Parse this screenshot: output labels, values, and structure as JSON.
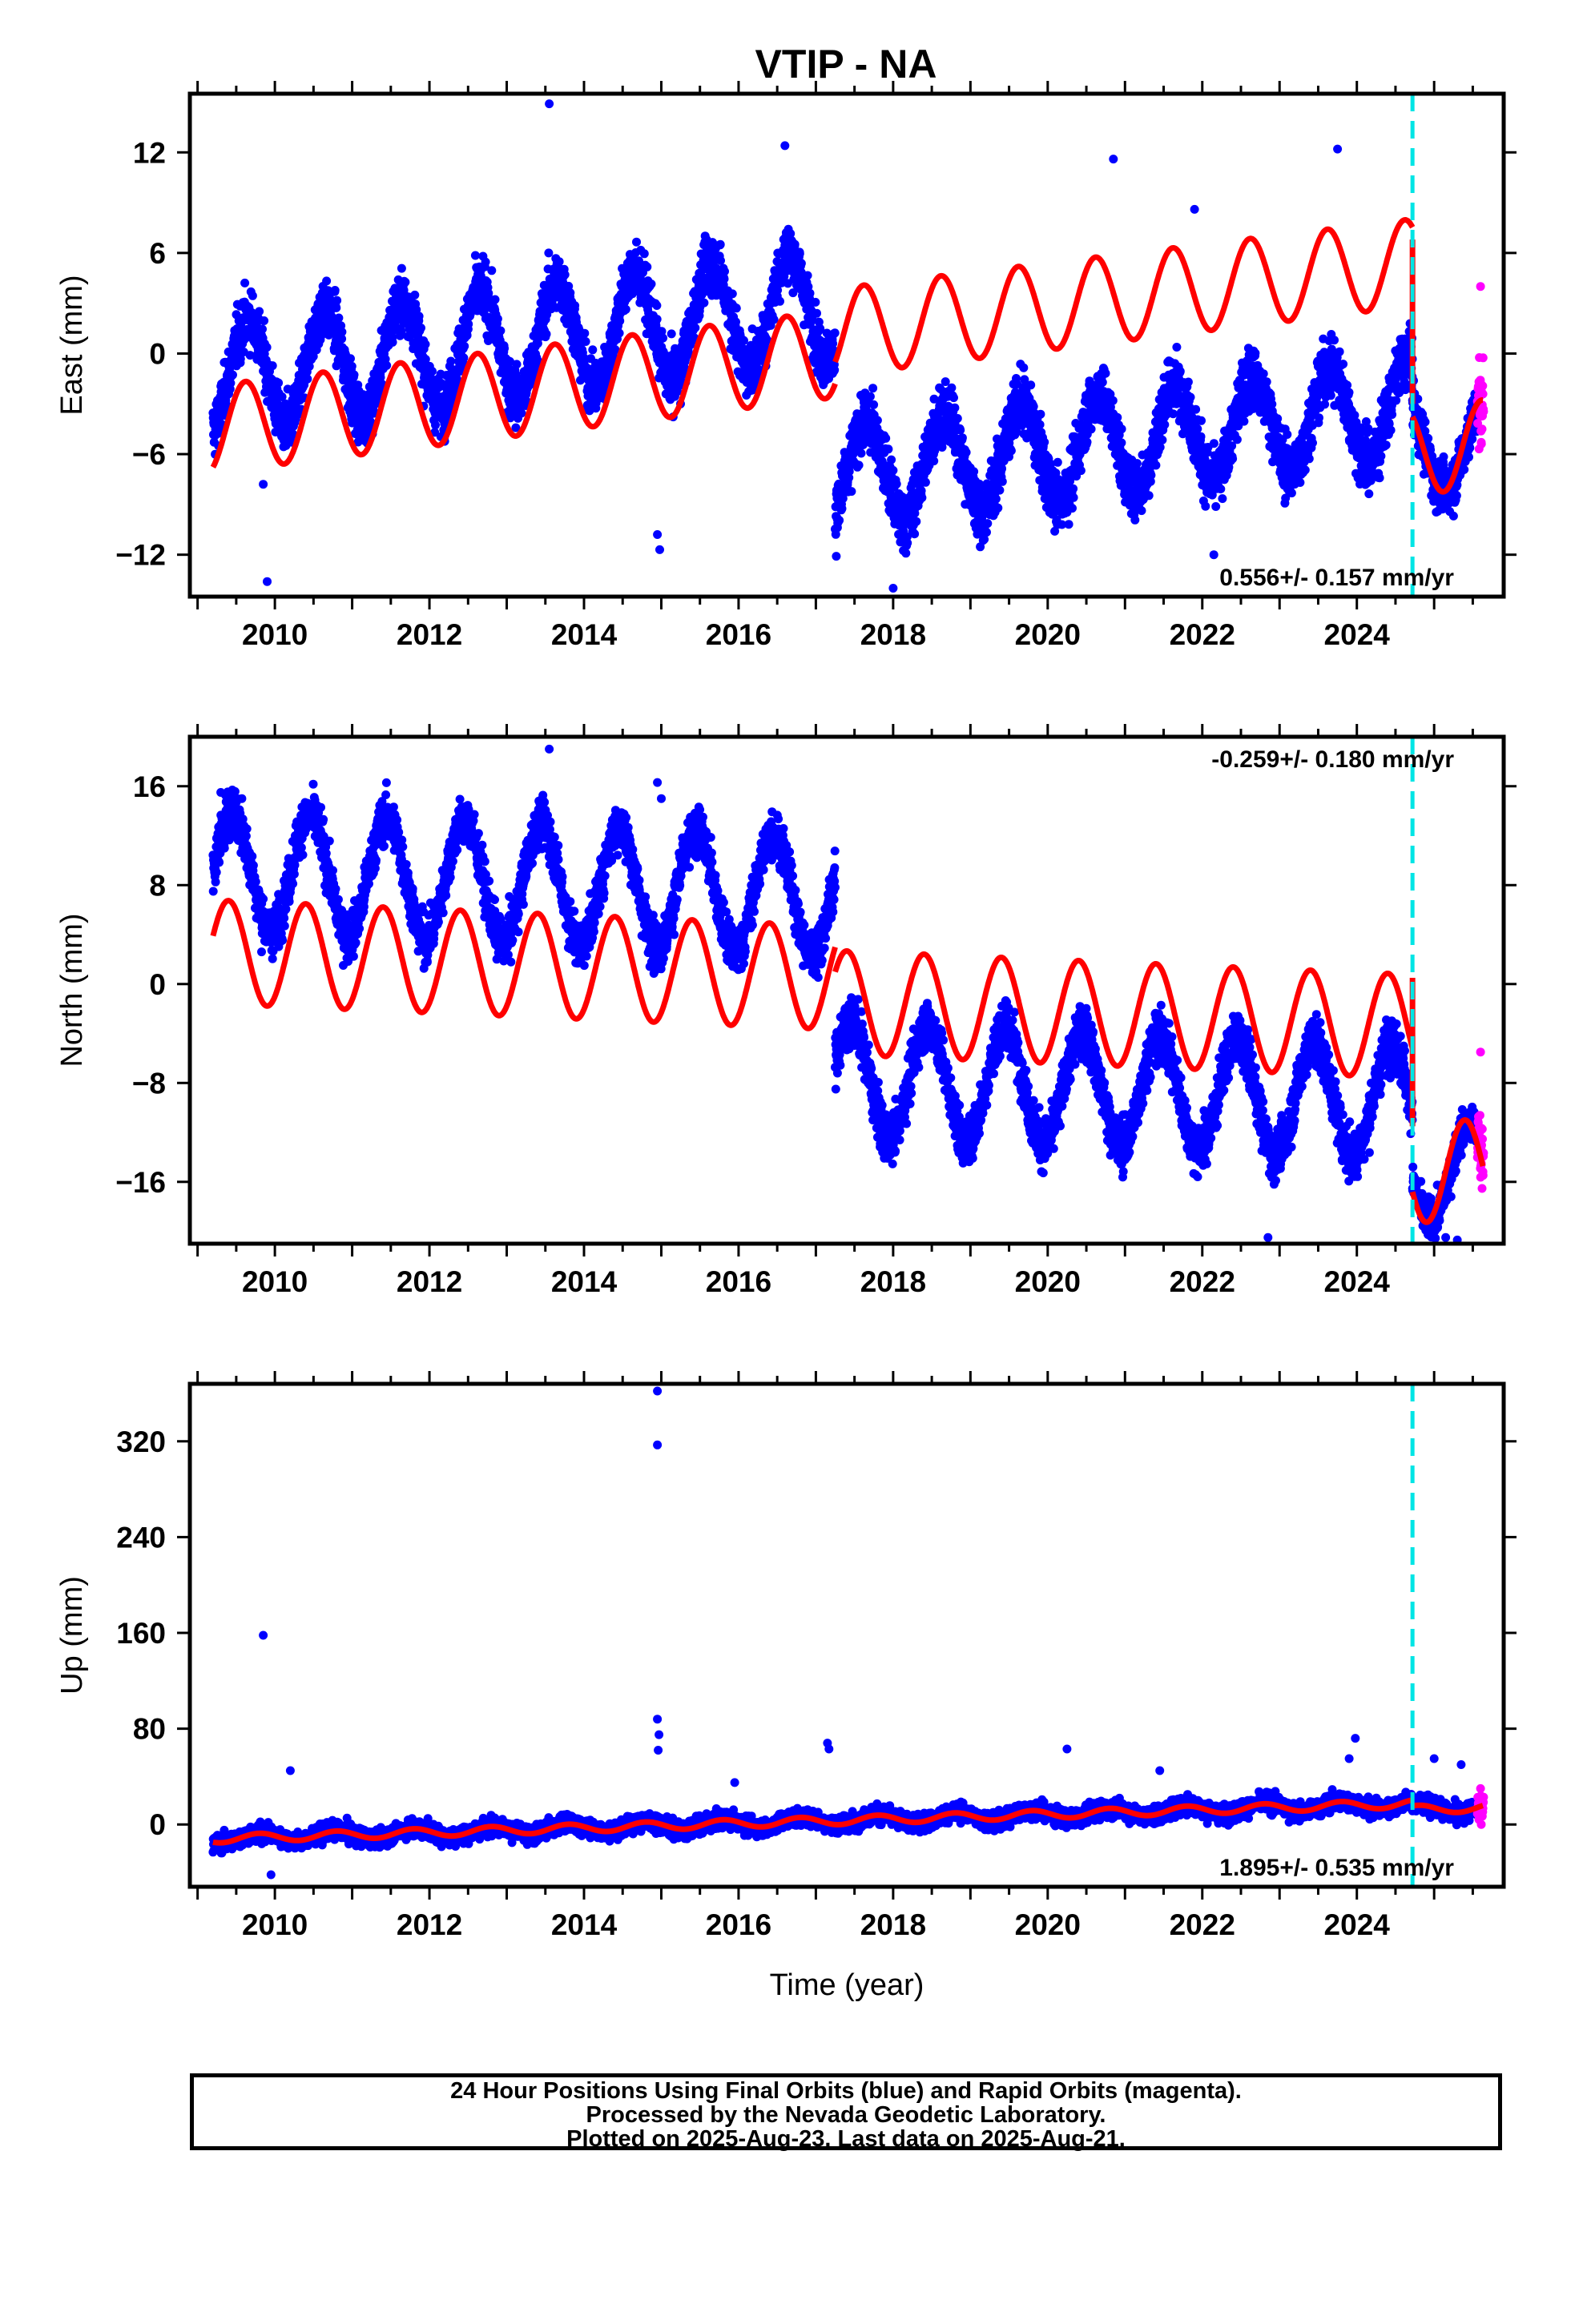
{
  "title": "VTIP - NA",
  "colors": {
    "final_orbits": "#0000ff",
    "rapid_orbits": "#ff00ff",
    "model": "#ff0000",
    "event": "#00e5e5"
  },
  "caption": {
    "line1": "24 Hour Positions Using Final Orbits (blue) and Rapid Orbits (magenta).",
    "line2": "Processed by the Nevada Geodetic Laboratory.",
    "line3": "Plotted on 2025-Aug-23. Last data on 2025-Aug-21."
  },
  "chart_data": [
    {
      "type": "scatter",
      "ylabel": "East (mm)",
      "xlim": [
        2008.9,
        2025.9
      ],
      "ylim": [
        -14.5,
        15.5
      ],
      "yticks": [
        -12,
        -6,
        0,
        6,
        12
      ],
      "xticks": [
        2010,
        2012,
        2014,
        2016,
        2018,
        2020,
        2022,
        2024
      ],
      "rate_label": "0.556+/- 0.157 mm/yr",
      "rate_position": "bottom-right",
      "event_line_x": 2024.72,
      "model": {
        "name": "model",
        "segments": [
          {
            "start": 2009.2,
            "end": 2017.25,
            "base": -4.5,
            "slope": 0.556,
            "amp": 2.6,
            "phase": 0.37
          },
          {
            "start": 2017.25,
            "end": 2024.72,
            "base": -3.2,
            "slope": 0.556,
            "amp": 2.6,
            "phase": 0.37
          },
          {
            "start": 2024.72,
            "end": 2025.63,
            "base": -14.5,
            "slope": 0.556,
            "amp": 2.6,
            "phase": 0.37
          }
        ],
        "jumps": [
          {
            "x": 2024.72,
            "from": 6.8,
            "to": -3.0
          }
        ]
      },
      "series": [
        {
          "name": "final",
          "segments": [
            {
              "start": 2009.2,
              "end": 2017.25,
              "base": -1.5,
              "slope": 0.556,
              "amp": 3.3,
              "phase": 0.4,
              "noise": 1.4
            },
            {
              "start": 2017.25,
              "end": 2024.72,
              "base": -11.8,
              "slope": 0.556,
              "amp": 3.0,
              "phase": 0.4,
              "noise": 1.5
            },
            {
              "start": 2024.72,
              "end": 2025.55,
              "base": -14.5,
              "slope": 0.556,
              "amp": 2.5,
              "phase": 0.4,
              "noise": 1.3
            }
          ],
          "outliers": [
            [
              2013.55,
              14.9
            ],
            [
              2009.85,
              -7.8
            ],
            [
              2009.9,
              -13.6
            ],
            [
              2014.95,
              -10.8
            ],
            [
              2014.98,
              -11.7
            ],
            [
              2020.85,
              11.6
            ],
            [
              2023.75,
              12.2
            ],
            [
              2016.6,
              12.4
            ],
            [
              2021.9,
              8.6
            ],
            [
              2018.0,
              -14.0
            ],
            [
              2022.15,
              -12.0
            ]
          ]
        },
        {
          "name": "rapid",
          "segments": [
            {
              "start": 2025.56,
              "end": 2025.64,
              "base": -14.5,
              "slope": 0.556,
              "amp": 2.5,
              "phase": 0.4,
              "noise": 2.2
            }
          ],
          "outliers": [
            [
              2025.6,
              4.0
            ],
            [
              2025.61,
              -5.3
            ]
          ]
        }
      ]
    },
    {
      "type": "scatter",
      "ylabel": "North (mm)",
      "xlim": [
        2008.9,
        2025.9
      ],
      "ylim": [
        -21,
        20
      ],
      "yticks": [
        -16,
        -8,
        0,
        8,
        16
      ],
      "xticks": [
        2010,
        2012,
        2014,
        2016,
        2018,
        2020,
        2022,
        2024
      ],
      "rate_label": "-0.259+/- 0.180 mm/yr",
      "rate_position": "top-right",
      "event_line_x": 2024.72,
      "model": {
        "name": "model",
        "segments": [
          {
            "start": 2009.2,
            "end": 2017.25,
            "base": 2.6,
            "slope": -0.259,
            "amp": 4.2,
            "phase": 0.15
          },
          {
            "start": 2017.25,
            "end": 2024.72,
            "base": 0.6,
            "slope": -0.259,
            "amp": 4.2,
            "phase": 0.15
          },
          {
            "start": 2024.72,
            "end": 2025.63,
            "base": -11.0,
            "slope": -0.259,
            "amp": 4.2,
            "phase": 0.15
          }
        ],
        "jumps": [
          {
            "x": 2024.72,
            "from": 0.5,
            "to": -11.5
          }
        ]
      },
      "series": [
        {
          "name": "final",
          "segments": [
            {
              "start": 2009.2,
              "end": 2017.25,
              "base": 9.2,
              "slope": -0.259,
              "amp": 4.8,
              "phase": 0.2,
              "noise": 1.6
            },
            {
              "start": 2017.25,
              "end": 2024.72,
              "base": -5.5,
              "slope": -0.259,
              "amp": 4.6,
              "phase": 0.2,
              "noise": 1.7
            },
            {
              "start": 2024.72,
              "end": 2025.55,
              "base": -11.2,
              "slope": -0.259,
              "amp": 4.0,
              "phase": 0.2,
              "noise": 1.3
            }
          ],
          "outliers": [
            [
              2013.55,
              19.0
            ],
            [
              2014.95,
              16.3
            ],
            [
              2015.0,
              15.0
            ],
            [
              2022.85,
              -20.5
            ],
            [
              2025.15,
              -20.5
            ],
            [
              2025.3,
              -20.7
            ],
            [
              2009.3,
              15.5
            ]
          ]
        },
        {
          "name": "rapid",
          "segments": [
            {
              "start": 2025.56,
              "end": 2025.64,
              "base": -11.2,
              "slope": -0.259,
              "amp": 4.0,
              "phase": 0.2,
              "noise": 2.5
            }
          ],
          "outliers": [
            [
              2025.6,
              -5.5
            ],
            [
              2025.61,
              -14.5
            ]
          ]
        }
      ]
    },
    {
      "type": "scatter",
      "ylabel": "Up (mm)",
      "xlabel": "Time (year)",
      "xlim": [
        2008.9,
        2025.9
      ],
      "ylim": [
        -52,
        368
      ],
      "yticks": [
        0,
        80,
        160,
        240,
        320
      ],
      "xticks": [
        2010,
        2012,
        2014,
        2016,
        2018,
        2020,
        2022,
        2024
      ],
      "rate_label": "1.895+/- 0.535 mm/yr",
      "rate_position": "bottom-right",
      "event_line_x": 2024.72,
      "model": {
        "name": "model",
        "segments": [
          {
            "start": 2009.2,
            "end": 2024.72,
            "base": -12.0,
            "slope": 1.895,
            "amp": 3.5,
            "phase": 0.55
          },
          {
            "start": 2024.72,
            "end": 2025.63,
            "base": -17.0,
            "slope": 1.895,
            "amp": 3.5,
            "phase": 0.55
          }
        ],
        "jumps": []
      },
      "series": [
        {
          "name": "final",
          "segments": [
            {
              "start": 2009.2,
              "end": 2024.72,
              "base": -12.0,
              "slope": 1.895,
              "amp": 4.0,
              "phase": 0.55,
              "noise": 6.0
            },
            {
              "start": 2024.72,
              "end": 2025.55,
              "base": -17.0,
              "slope": 1.895,
              "amp": 4.0,
              "phase": 0.55,
              "noise": 6.0
            }
          ],
          "outliers": [
            [
              2014.95,
              362
            ],
            [
              2014.95,
              317
            ],
            [
              2009.85,
              158
            ],
            [
              2014.95,
              88
            ],
            [
              2014.97,
              75
            ],
            [
              2014.96,
              62
            ],
            [
              2010.2,
              45
            ],
            [
              2017.15,
              68
            ],
            [
              2017.17,
              63
            ],
            [
              2020.25,
              63
            ],
            [
              2023.98,
              72
            ],
            [
              2023.9,
              55
            ],
            [
              2025.0,
              55
            ],
            [
              2025.35,
              50
            ],
            [
              2009.95,
              -42
            ],
            [
              2015.95,
              35
            ],
            [
              2021.45,
              45
            ]
          ]
        },
        {
          "name": "rapid",
          "segments": [
            {
              "start": 2025.56,
              "end": 2025.64,
              "base": -17.0,
              "slope": 1.895,
              "amp": 4.0,
              "phase": 0.55,
              "noise": 9.0
            }
          ],
          "outliers": [
            [
              2025.6,
              30
            ],
            [
              2025.61,
              0
            ]
          ]
        }
      ]
    }
  ]
}
